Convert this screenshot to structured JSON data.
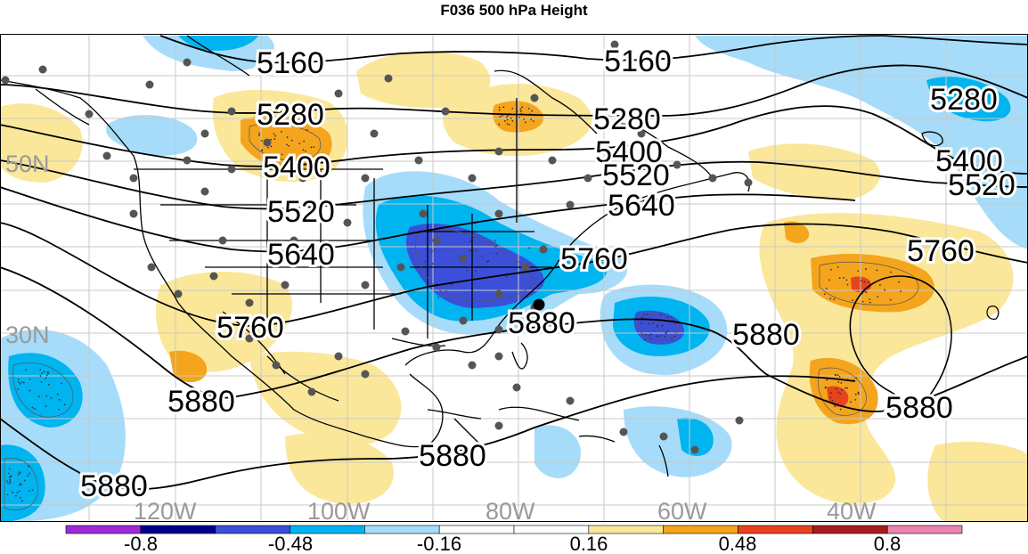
{
  "title": "F036 500 hPa Height",
  "height_contours": [
    {
      "label": "5160",
      "label_positions": [
        [
          326,
          70
        ],
        [
          716,
          68
        ]
      ]
    },
    {
      "label": "5280",
      "label_positions": [
        [
          326,
          128
        ],
        [
          704,
          133
        ],
        [
          1082,
          111
        ]
      ]
    },
    {
      "label": "5400",
      "label_positions": [
        [
          333,
          187
        ],
        [
          706,
          170
        ],
        [
          1088,
          180
        ]
      ]
    },
    {
      "label": "5520",
      "label_positions": [
        [
          338,
          237
        ],
        [
          714,
          196
        ],
        [
          1102,
          207
        ]
      ]
    },
    {
      "label": "5640",
      "label_positions": [
        [
          338,
          285
        ],
        [
          720,
          230
        ]
      ]
    },
    {
      "label": "5760",
      "label_positions": [
        [
          281,
          367
        ],
        [
          667,
          290
        ],
        [
          1056,
          281
        ]
      ]
    },
    {
      "label": "5880",
      "label_positions": [
        [
          226,
          450
        ],
        [
          608,
          362
        ],
        [
          860,
          375
        ],
        [
          1032,
          457
        ],
        [
          508,
          511
        ],
        [
          128,
          545
        ]
      ]
    }
  ],
  "lat_labels": [
    "50N",
    "30N"
  ],
  "lon_labels": [
    "120W",
    "100W",
    "80W",
    "60W",
    "40W"
  ],
  "colorbar": {
    "tick_labels": [
      "-0.8",
      "-0.48",
      "-0.16",
      "0.16",
      "0.48",
      "0.8"
    ],
    "colors": [
      "#a12ad8",
      "#00008b",
      "#3b4fd8",
      "#00b4f0",
      "#a6dcf9",
      "#ffffff",
      "#ffffff",
      "#fbe79a",
      "#f4a51d",
      "#e8431e",
      "#a61c1c",
      "#ec82b1"
    ]
  },
  "shading_colors": {
    "neg_light": "#a6dcf9",
    "neg_med": "#00b4f0",
    "neg_strong": "#3b4fd8",
    "pos_light": "#fbe79a",
    "pos_med": "#f4a51d",
    "pos_strong": "#e8431e"
  }
}
